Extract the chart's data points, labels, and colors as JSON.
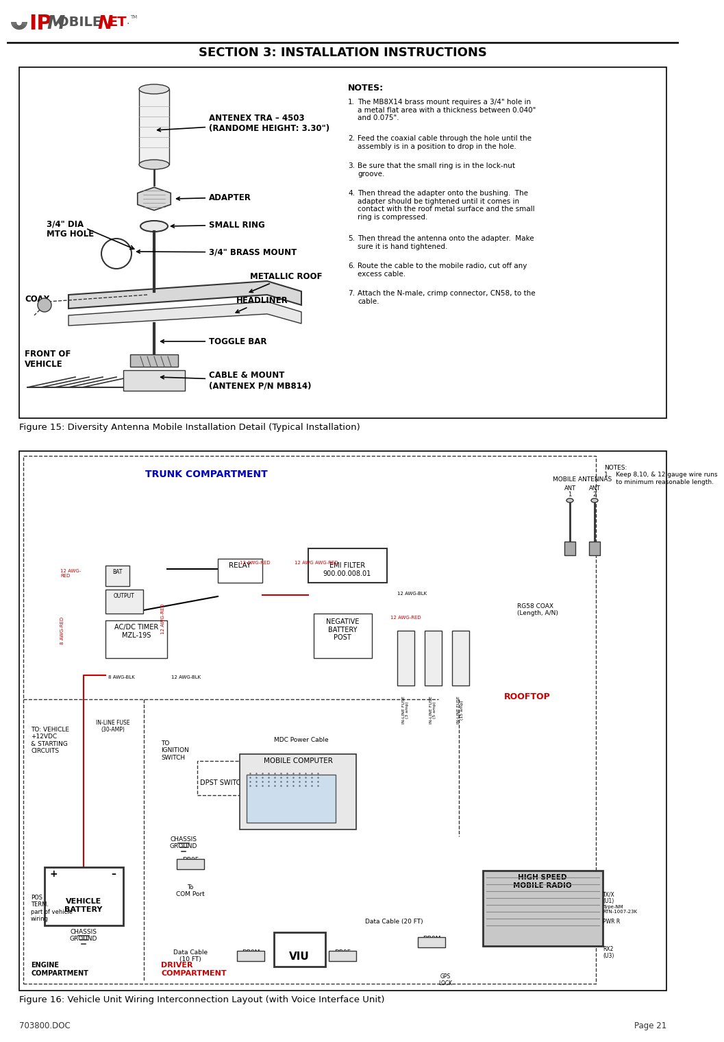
{
  "page_bg": "#ffffff",
  "section_title": "SECTION 3: INSTALLATION INSTRUCTIONS",
  "footer_left": "703800.DOC",
  "footer_right": "Page 21",
  "notes_title": "NOTES:",
  "notes": [
    "The MB8X14 brass mount requires a 3/4\" hole in\na metal flat area with a thickness between 0.040\"\nand 0.075\".",
    "Feed the coaxial cable through the hole until the\nassembly is in a position to drop in the hole.",
    "Be sure that the small ring is in the lock-nut\ngroove.",
    "Then thread the adapter onto the bushing.  The\nadapter should be tightened until it comes in\ncontact with the roof metal surface and the small\nring is compressed.",
    "Then thread the antenna onto the adapter.  Make\nsure it is hand tightened.",
    "Route the cable to the mobile radio, cut off any\nexcess cable.",
    "Attach the N-male, crimp connector, CN58, to the\ncable."
  ],
  "fig15_caption": "Figure 15: Diversity Antenna Mobile Installation Detail (Typical Installation)",
  "fig16_caption": "Figure 16: Vehicle Unit Wiring Interconnection Layout (with Voice Interface Unit)",
  "fig2_trunk_label": "TRUNK COMPARTMENT",
  "fig2_trunk_color": "#0000bb",
  "fig2_driver_label": "DRIVER\nCOMPARTMENT",
  "fig2_driver_color": "#cc0000",
  "fig2_engine_label": "ENGINE\nCOMPARTMENT",
  "fig2_rooftop_label": "ROOFTOP",
  "fig2_rooftop_color": "#cc0000",
  "fig2_notes": "NOTES:\n1.   Keep 8,10, & 12 gauge wire runs\n      to minimum reasonable length.",
  "red_color": "#cc0000",
  "black": "#000000",
  "gray": "#888888",
  "lightgray": "#cccccc",
  "verylightgray": "#eeeeee"
}
